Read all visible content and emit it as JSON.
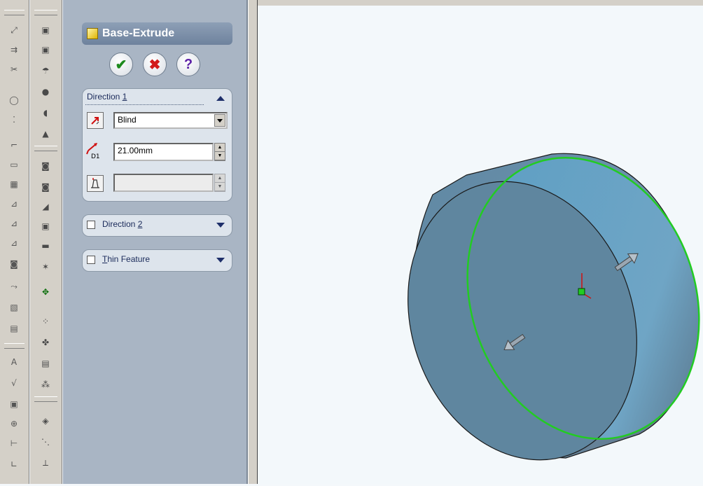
{
  "property_manager": {
    "title": "Base-Extrude",
    "ok_button": "✔",
    "cancel_button": "✖",
    "help_button": "?",
    "direction1": {
      "label_prefix": "Direction ",
      "label_accel": "1",
      "end_condition": "Blind",
      "depth": "21.00mm"
    },
    "direction2": {
      "label_prefix": "Direction ",
      "label_accel": "2",
      "checked": false
    },
    "thin_feature": {
      "label_accel": "T",
      "label_rest": "hin Feature",
      "checked": false
    }
  },
  "icons": {
    "toolbar_left": [
      "smart-dimension",
      "convert-entities",
      "trim",
      "circle",
      "point",
      "line",
      "rectangle",
      "grid",
      "mirror",
      "offset",
      "dimension",
      "extrude-boss",
      "add-relation",
      "sketch",
      "snap",
      "text",
      "centerline",
      "note",
      "zoom",
      "hole",
      "origin",
      "plane"
    ],
    "toolbar_right": [
      "extrude",
      "revolve",
      "sweep",
      "loft",
      "fillet",
      "chamfer",
      "shell",
      "draft",
      "rib",
      "hole-wizard",
      "dome",
      "move-copy",
      "linear-pattern",
      "circular-pattern",
      "mirror-feature",
      "curve-pattern",
      "reference-plane",
      "reference-axis"
    ]
  },
  "colors": {
    "pm_background": "#a9b5c4",
    "part_face": "#6b8ea8",
    "selected_edge": "#22cc22"
  }
}
